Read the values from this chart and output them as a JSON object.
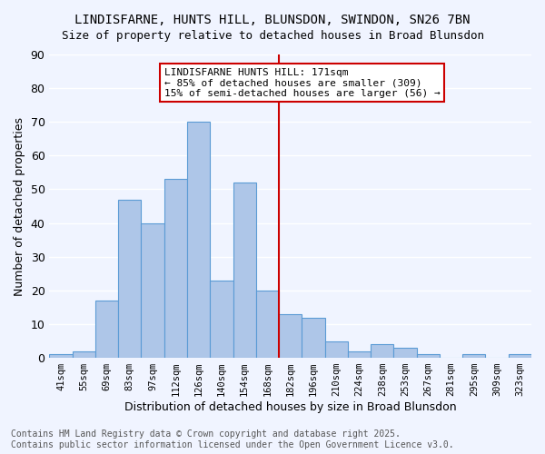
{
  "title_line1": "LINDISFARNE, HUNTS HILL, BLUNSDON, SWINDON, SN26 7BN",
  "title_line2": "Size of property relative to detached houses in Broad Blunsdon",
  "xlabel": "Distribution of detached houses by size in Broad Blunsdon",
  "ylabel": "Number of detached properties",
  "categories": [
    "41sqm",
    "55sqm",
    "69sqm",
    "83sqm",
    "97sqm",
    "112sqm",
    "126sqm",
    "140sqm",
    "154sqm",
    "168sqm",
    "182sqm",
    "196sqm",
    "210sqm",
    "224sqm",
    "238sqm",
    "253sqm",
    "267sqm",
    "281sqm",
    "295sqm",
    "309sqm",
    "323sqm"
  ],
  "values": [
    1,
    2,
    17,
    47,
    40,
    53,
    70,
    23,
    52,
    20,
    13,
    12,
    5,
    2,
    4,
    3,
    1,
    0,
    1,
    0,
    1
  ],
  "bar_color": "#aec6e8",
  "bar_edge_color": "#5b9bd5",
  "vline_x": 9.5,
  "vline_color": "#cc0000",
  "annotation_text": "LINDISFARNE HUNTS HILL: 171sqm\n← 85% of detached houses are smaller (309)\n15% of semi-detached houses are larger (56) →",
  "annotation_box_color": "#ffffff",
  "annotation_edge_color": "#cc0000",
  "annotation_fontsize": 8,
  "ylim": [
    0,
    90
  ],
  "yticks": [
    0,
    10,
    20,
    30,
    40,
    50,
    60,
    70,
    80,
    90
  ],
  "bg_color": "#f0f4ff",
  "grid_color": "#ffffff",
  "footer": "Contains HM Land Registry data © Crown copyright and database right 2025.\nContains public sector information licensed under the Open Government Licence v3.0.",
  "footer_fontsize": 7
}
